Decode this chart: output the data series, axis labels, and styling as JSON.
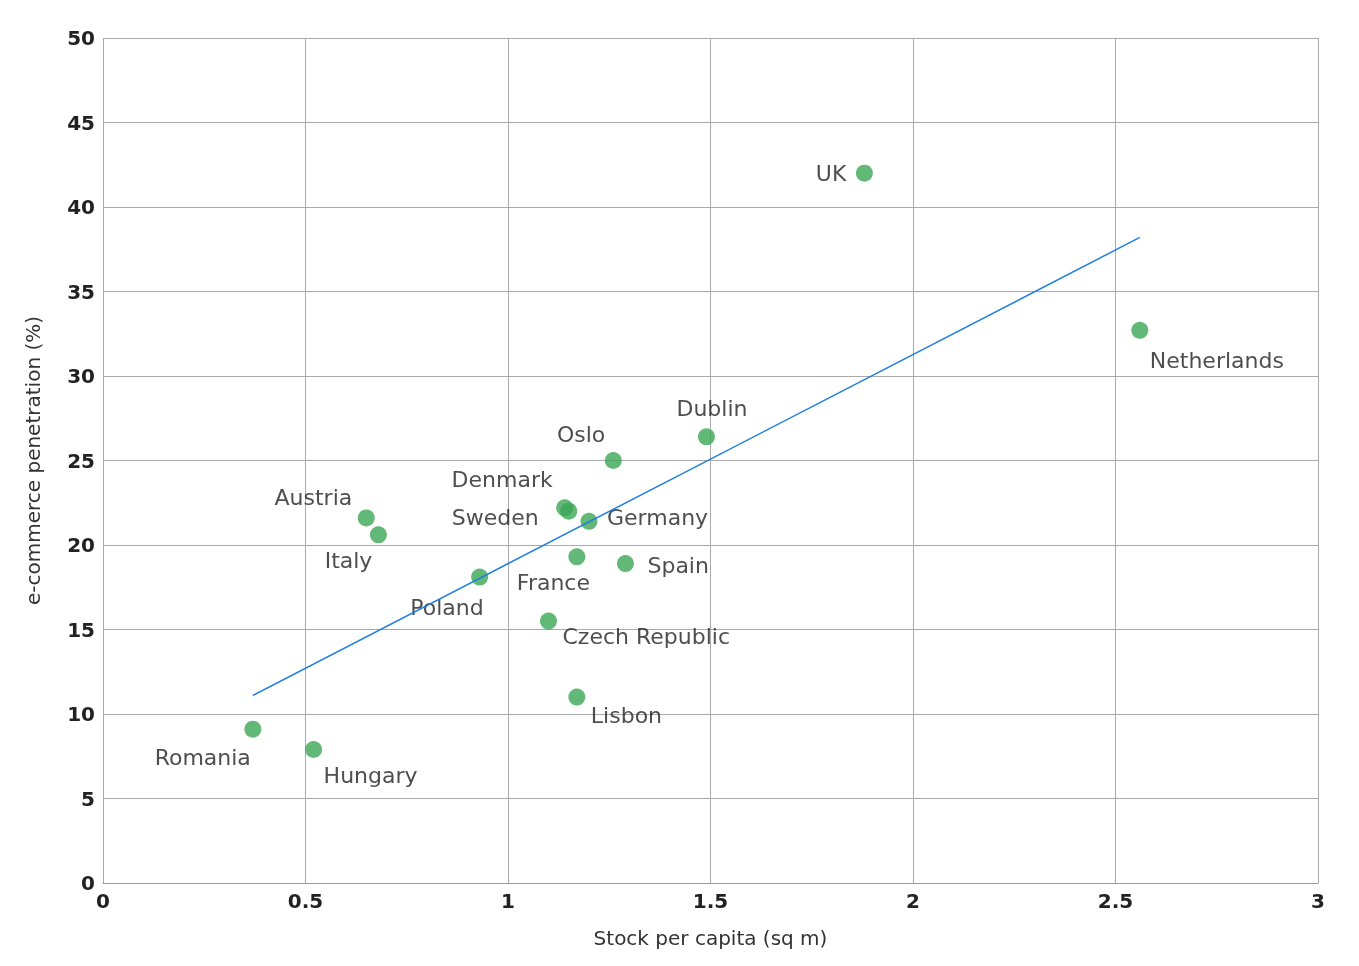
{
  "chart_data": {
    "type": "scatter",
    "xlabel": "Stock per capita (sq m)",
    "ylabel": "e-commerce penetration (%)",
    "xlim": [
      0,
      3
    ],
    "xticks": [
      0,
      0.5,
      1.0,
      1.5,
      2.0,
      2.5,
      3.0
    ],
    "ylim": [
      0,
      50
    ],
    "yticks": [
      0,
      5,
      10,
      15,
      20,
      25,
      30,
      35,
      40,
      45,
      50
    ],
    "grid": true,
    "series": [
      {
        "marker": "circle",
        "color": "#3aa655",
        "x": [
          1.88,
          2.56,
          1.49,
          1.26,
          1.14,
          1.15,
          1.2,
          0.65,
          0.68,
          1.29,
          1.17,
          0.93,
          1.1,
          1.17,
          0.37,
          0.52
        ],
        "values": [
          42.0,
          32.7,
          26.4,
          25.0,
          22.2,
          22.0,
          21.4,
          21.6,
          20.6,
          18.9,
          19.3,
          18.1,
          15.5,
          11.0,
          9.1,
          7.9
        ]
      },
      {
        "type": "line",
        "color": "#1e7fe0",
        "x": [
          0.37,
          2.56
        ],
        "values": [
          11.1,
          38.2
        ]
      }
    ],
    "annotations": [
      {
        "text": "UK",
        "x": 1.88,
        "y": 42.0
      },
      {
        "text": "Netherlands",
        "x": 2.56,
        "y": 32.7
      },
      {
        "text": "Dublin",
        "x": 1.49,
        "y": 26.4
      },
      {
        "text": "Oslo",
        "x": 1.26,
        "y": 25.0
      },
      {
        "text": "Denmark",
        "x": 1.14,
        "y": 22.2
      },
      {
        "text": "Sweden",
        "x": 1.15,
        "y": 22.0
      },
      {
        "text": "Germany",
        "x": 1.2,
        "y": 21.4
      },
      {
        "text": "Austria",
        "x": 0.65,
        "y": 21.6
      },
      {
        "text": "Italy",
        "x": 0.68,
        "y": 20.6
      },
      {
        "text": "Spain",
        "x": 1.29,
        "y": 18.9
      },
      {
        "text": "France",
        "x": 1.17,
        "y": 19.3
      },
      {
        "text": "Poland",
        "x": 0.93,
        "y": 18.1
      },
      {
        "text": "Czech Republic",
        "x": 1.1,
        "y": 15.5
      },
      {
        "text": "Lisbon",
        "x": 1.17,
        "y": 11.0
      },
      {
        "text": "Romania",
        "x": 0.37,
        "y": 9.1
      },
      {
        "text": "Hungary",
        "x": 0.52,
        "y": 7.9
      }
    ]
  }
}
